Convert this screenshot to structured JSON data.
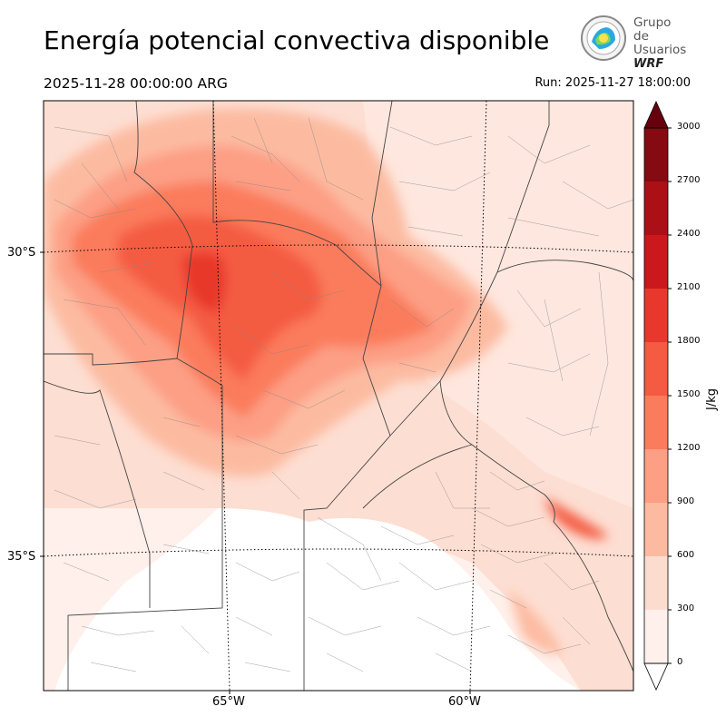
{
  "title": "Energía potencial convectiva disponible",
  "valid_time": "2025-11-28 00:00:00 ARG",
  "run_time": "Run: 2025-11-27 18:00:00",
  "logo": {
    "line1": "Grupo de",
    "line2": "Usuarios",
    "line3": "WRF",
    "icon": "globe-emblem-icon"
  },
  "axes": {
    "lat_labels": [
      "30°S",
      "35°S"
    ],
    "lon_labels": [
      "65°W",
      "60°W"
    ]
  },
  "colorbar": {
    "unit": "J/kg",
    "ticks": [
      "0",
      "300",
      "600",
      "900",
      "1200",
      "1500",
      "1800",
      "2100",
      "2400",
      "2700",
      "3000"
    ],
    "colors": [
      "#fff0eb",
      "#fddcd0",
      "#fcbba1",
      "#fc9f85",
      "#fb7c5c",
      "#f45b42",
      "#e8372c",
      "#cb181d",
      "#aa1016",
      "#850a12"
    ],
    "extend_low_color": "#ffffff",
    "extend_high_color": "#67000d"
  }
}
